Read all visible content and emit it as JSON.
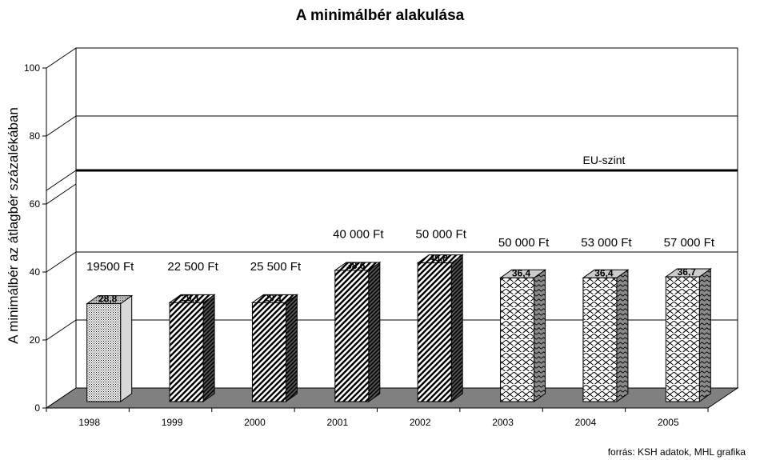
{
  "chart_data": {
    "type": "bar",
    "title": "A minimálbér alakulása",
    "ylabel": "A minimálbér az átlagbér százalékában",
    "xlabel": "",
    "ylim": [
      0,
      100
    ],
    "yticks": [
      "0",
      "20",
      "40",
      "60",
      "80",
      "100"
    ],
    "categories": [
      "1998",
      "1999",
      "2000",
      "2001",
      "2002",
      "2003",
      "2004",
      "2005"
    ],
    "values": [
      28.8,
      29.1,
      29.1,
      38.6,
      40.8,
      36.4,
      36.4,
      36.7
    ],
    "data_labels": [
      "28,8",
      "29,1",
      "29,1",
      "38,6",
      "40,8",
      "36,4",
      "36,4",
      "36,7"
    ],
    "wage_labels": [
      "19500 Ft",
      "22 500 Ft",
      "25 500 Ft",
      "40 000 Ft",
      "50 000 Ft",
      "50 000 Ft",
      "53 000 Ft",
      "57 000 Ft"
    ],
    "reference_line": {
      "label": "EU-szint",
      "value": 64
    },
    "gridlines": [
      20,
      40,
      80
    ],
    "source": "forrás: KSH adatok, MHL grafika"
  }
}
